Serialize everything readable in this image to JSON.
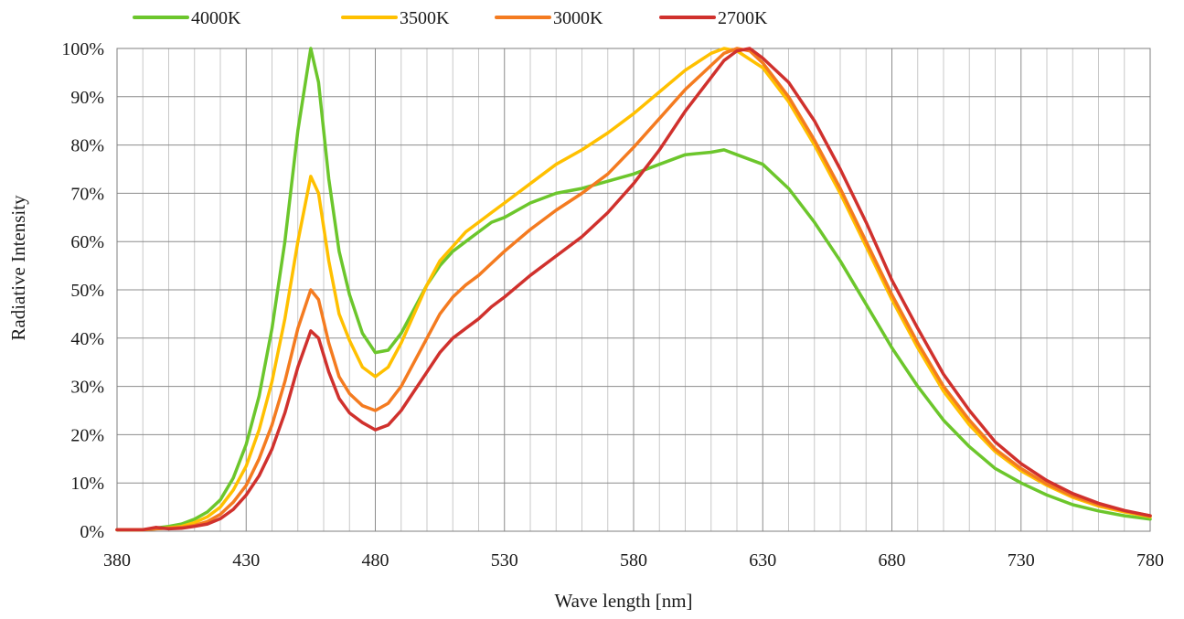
{
  "chart_data": {
    "type": "line",
    "xlabel": "Wave length [nm]",
    "ylabel": "Radiative Intensity",
    "xlim": [
      380,
      780
    ],
    "ylim": [
      0,
      100
    ],
    "x_ticks": [
      380,
      430,
      480,
      530,
      580,
      630,
      680,
      730,
      780
    ],
    "x_tick_labels": [
      "380",
      "430",
      "480",
      "530",
      "580",
      "630",
      "680",
      "730",
      "780"
    ],
    "y_ticks": [
      0,
      10,
      20,
      30,
      40,
      50,
      60,
      70,
      80,
      90,
      100
    ],
    "y_tick_labels": [
      "0%",
      "10%",
      "20%",
      "30%",
      "40%",
      "50%",
      "60%",
      "70%",
      "80%",
      "90%",
      "100%"
    ],
    "minor_x_grid_step": 10,
    "grid": true,
    "legend_position": "top",
    "series": [
      {
        "name": "4000K",
        "color": "#6cc62c",
        "points": [
          [
            380,
            0.3
          ],
          [
            390,
            0.3
          ],
          [
            400,
            1
          ],
          [
            405,
            1.5
          ],
          [
            410,
            2.5
          ],
          [
            415,
            4
          ],
          [
            420,
            6.5
          ],
          [
            425,
            11
          ],
          [
            430,
            18
          ],
          [
            435,
            28
          ],
          [
            440,
            42
          ],
          [
            445,
            60
          ],
          [
            450,
            83
          ],
          [
            455,
            100
          ],
          [
            458,
            93
          ],
          [
            462,
            73
          ],
          [
            466,
            58
          ],
          [
            470,
            49
          ],
          [
            475,
            41
          ],
          [
            480,
            37
          ],
          [
            485,
            37.5
          ],
          [
            490,
            41
          ],
          [
            495,
            46
          ],
          [
            500,
            51
          ],
          [
            505,
            55
          ],
          [
            510,
            58
          ],
          [
            515,
            60
          ],
          [
            520,
            62
          ],
          [
            525,
            64
          ],
          [
            530,
            65
          ],
          [
            540,
            68
          ],
          [
            550,
            70
          ],
          [
            560,
            71
          ],
          [
            570,
            72.5
          ],
          [
            580,
            74
          ],
          [
            590,
            76
          ],
          [
            600,
            78
          ],
          [
            610,
            78.5
          ],
          [
            615,
            79
          ],
          [
            620,
            78
          ],
          [
            630,
            76
          ],
          [
            640,
            71
          ],
          [
            650,
            64
          ],
          [
            660,
            56
          ],
          [
            670,
            47
          ],
          [
            680,
            38
          ],
          [
            690,
            30
          ],
          [
            700,
            23
          ],
          [
            710,
            17.5
          ],
          [
            720,
            13
          ],
          [
            730,
            10
          ],
          [
            740,
            7.5
          ],
          [
            750,
            5.5
          ],
          [
            760,
            4.2
          ],
          [
            770,
            3.2
          ],
          [
            780,
            2.5
          ]
        ]
      },
      {
        "name": "3500K",
        "color": "#ffc000",
        "points": [
          [
            380,
            0.3
          ],
          [
            390,
            0.3
          ],
          [
            400,
            0.7
          ],
          [
            405,
            1
          ],
          [
            410,
            1.8
          ],
          [
            415,
            3
          ],
          [
            420,
            5
          ],
          [
            425,
            8.5
          ],
          [
            430,
            13.5
          ],
          [
            435,
            21
          ],
          [
            440,
            31
          ],
          [
            445,
            44
          ],
          [
            450,
            60
          ],
          [
            455,
            73.5
          ],
          [
            458,
            70
          ],
          [
            462,
            56
          ],
          [
            466,
            45
          ],
          [
            470,
            39.5
          ],
          [
            475,
            34
          ],
          [
            480,
            32
          ],
          [
            485,
            34
          ],
          [
            490,
            39
          ],
          [
            495,
            45
          ],
          [
            500,
            51
          ],
          [
            505,
            56
          ],
          [
            510,
            59
          ],
          [
            515,
            62
          ],
          [
            520,
            64
          ],
          [
            525,
            66
          ],
          [
            530,
            68
          ],
          [
            540,
            72
          ],
          [
            550,
            76
          ],
          [
            560,
            79
          ],
          [
            570,
            82.5
          ],
          [
            580,
            86.5
          ],
          [
            590,
            91
          ],
          [
            600,
            95.5
          ],
          [
            610,
            99
          ],
          [
            615,
            100
          ],
          [
            620,
            99.5
          ],
          [
            630,
            96
          ],
          [
            640,
            89
          ],
          [
            650,
            80
          ],
          [
            660,
            70
          ],
          [
            670,
            59
          ],
          [
            680,
            48
          ],
          [
            690,
            38
          ],
          [
            700,
            29
          ],
          [
            710,
            22
          ],
          [
            720,
            16.5
          ],
          [
            730,
            12.5
          ],
          [
            740,
            9.5
          ],
          [
            750,
            7
          ],
          [
            760,
            5.2
          ],
          [
            770,
            4
          ],
          [
            780,
            3
          ]
        ]
      },
      {
        "name": "3000K",
        "color": "#f47b20",
        "points": [
          [
            380,
            0.3
          ],
          [
            390,
            0.3
          ],
          [
            395,
            0.5
          ],
          [
            400,
            0.6
          ],
          [
            405,
            0.8
          ],
          [
            410,
            1.2
          ],
          [
            415,
            2
          ],
          [
            420,
            3.5
          ],
          [
            425,
            6
          ],
          [
            430,
            9.5
          ],
          [
            435,
            15
          ],
          [
            440,
            22
          ],
          [
            445,
            31
          ],
          [
            450,
            42
          ],
          [
            455,
            50
          ],
          [
            458,
            48
          ],
          [
            462,
            39
          ],
          [
            466,
            32
          ],
          [
            470,
            28.5
          ],
          [
            475,
            26
          ],
          [
            480,
            25
          ],
          [
            485,
            26.5
          ],
          [
            490,
            30
          ],
          [
            495,
            35
          ],
          [
            500,
            40
          ],
          [
            505,
            45
          ],
          [
            510,
            48.5
          ],
          [
            515,
            51
          ],
          [
            520,
            53
          ],
          [
            525,
            55.5
          ],
          [
            530,
            58
          ],
          [
            540,
            62.5
          ],
          [
            550,
            66.5
          ],
          [
            560,
            70
          ],
          [
            570,
            74
          ],
          [
            580,
            79.5
          ],
          [
            590,
            85.5
          ],
          [
            600,
            91.5
          ],
          [
            610,
            96.5
          ],
          [
            615,
            99
          ],
          [
            620,
            100
          ],
          [
            625,
            99.5
          ],
          [
            630,
            97
          ],
          [
            640,
            90
          ],
          [
            650,
            81
          ],
          [
            660,
            71
          ],
          [
            670,
            60
          ],
          [
            680,
            49
          ],
          [
            690,
            39
          ],
          [
            700,
            30
          ],
          [
            710,
            23
          ],
          [
            720,
            17
          ],
          [
            730,
            13
          ],
          [
            740,
            9.8
          ],
          [
            750,
            7.3
          ],
          [
            760,
            5.5
          ],
          [
            770,
            4.2
          ],
          [
            780,
            3.2
          ]
        ]
      },
      {
        "name": "2700K",
        "color": "#d0312d",
        "points": [
          [
            380,
            0.3
          ],
          [
            390,
            0.3
          ],
          [
            395,
            0.8
          ],
          [
            400,
            0.5
          ],
          [
            405,
            0.6
          ],
          [
            410,
            1
          ],
          [
            415,
            1.5
          ],
          [
            420,
            2.6
          ],
          [
            425,
            4.5
          ],
          [
            430,
            7.5
          ],
          [
            435,
            11.5
          ],
          [
            440,
            17
          ],
          [
            445,
            24.5
          ],
          [
            450,
            34
          ],
          [
            455,
            41.5
          ],
          [
            458,
            40
          ],
          [
            462,
            33
          ],
          [
            466,
            27.5
          ],
          [
            470,
            24.5
          ],
          [
            475,
            22.5
          ],
          [
            480,
            21
          ],
          [
            485,
            22
          ],
          [
            490,
            25
          ],
          [
            495,
            29
          ],
          [
            500,
            33
          ],
          [
            505,
            37
          ],
          [
            510,
            40
          ],
          [
            515,
            42
          ],
          [
            520,
            44
          ],
          [
            525,
            46.5
          ],
          [
            530,
            48.5
          ],
          [
            540,
            53
          ],
          [
            550,
            57
          ],
          [
            560,
            61
          ],
          [
            570,
            66
          ],
          [
            580,
            72
          ],
          [
            590,
            79
          ],
          [
            600,
            87
          ],
          [
            610,
            94
          ],
          [
            615,
            97.5
          ],
          [
            620,
            99.5
          ],
          [
            625,
            100
          ],
          [
            630,
            98
          ],
          [
            640,
            93
          ],
          [
            650,
            85
          ],
          [
            660,
            75
          ],
          [
            670,
            64
          ],
          [
            680,
            52
          ],
          [
            690,
            42
          ],
          [
            700,
            32.5
          ],
          [
            710,
            25
          ],
          [
            720,
            18.5
          ],
          [
            730,
            14
          ],
          [
            740,
            10.5
          ],
          [
            750,
            7.8
          ],
          [
            760,
            5.8
          ],
          [
            770,
            4.3
          ],
          [
            780,
            3.2
          ]
        ]
      }
    ]
  }
}
